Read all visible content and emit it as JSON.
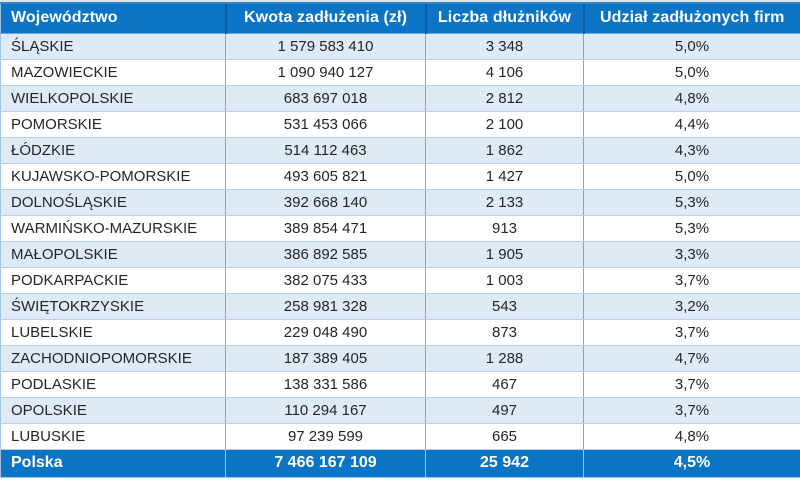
{
  "table": {
    "columns": [
      "Województwo",
      "Kwota zadłużenia (zł)",
      "Liczba dłużników",
      "Udział zadłużonych firm"
    ],
    "rows": [
      [
        "ŚLĄSKIE",
        "1 579 583 410",
        "3 348",
        "5,0%"
      ],
      [
        "MAZOWIECKIE",
        "1 090 940 127",
        "4 106",
        "5,0%"
      ],
      [
        "WIELKOPOLSKIE",
        "683 697 018",
        "2 812",
        "4,8%"
      ],
      [
        "POMORSKIE",
        "531 453 066",
        "2 100",
        "4,4%"
      ],
      [
        "ŁÓDZKIE",
        "514 112 463",
        "1 862",
        "4,3%"
      ],
      [
        "KUJAWSKO-POMORSKIE",
        "493 605 821",
        "1 427",
        "5,0%"
      ],
      [
        "DOLNOŚLĄSKIE",
        "392 668 140",
        "2 133",
        "5,3%"
      ],
      [
        "WARMIŃSKO-MAZURSKIE",
        "389 854 471",
        "913",
        "5,3%"
      ],
      [
        "MAŁOPOLSKIE",
        "386 892 585",
        "1 905",
        "3,3%"
      ],
      [
        "PODKARPACKIE",
        "382 075 433",
        "1 003",
        "3,7%"
      ],
      [
        "ŚWIĘTOKRZYSKIE",
        "258 981 328",
        "543",
        "3,2%"
      ],
      [
        "LUBELSKIE",
        "229 048 490",
        "873",
        "3,7%"
      ],
      [
        "ZACHODNIOPOMORSKIE",
        "187 389 405",
        "1 288",
        "4,7%"
      ],
      [
        "PODLASKIE",
        "138 331 586",
        "467",
        "3,7%"
      ],
      [
        "OPOLSKIE",
        "110 294 167",
        "497",
        "3,7%"
      ],
      [
        "LUBUSKIE",
        "97 239 599",
        "665",
        "4,8%"
      ]
    ],
    "total": [
      "Polska",
      "7 466 167 109",
      "25 942",
      "4,5%"
    ]
  },
  "chart_data": {
    "type": "table",
    "title": "",
    "columns": [
      "Województwo",
      "Kwota zadłużenia (zł)",
      "Liczba dłużników",
      "Udział zadłużonych firm"
    ],
    "rows": [
      {
        "wojewodztwo": "ŚLĄSKIE",
        "kwota_zadluzenia_zl": 1579583410,
        "liczba_dluznikow": 3348,
        "udzial_zadluzonych_firm_pct": 5.0
      },
      {
        "wojewodztwo": "MAZOWIECKIE",
        "kwota_zadluzenia_zl": 1090940127,
        "liczba_dluznikow": 4106,
        "udzial_zadluzonych_firm_pct": 5.0
      },
      {
        "wojewodztwo": "WIELKOPOLSKIE",
        "kwota_zadluzenia_zl": 683697018,
        "liczba_dluznikow": 2812,
        "udzial_zadluzonych_firm_pct": 4.8
      },
      {
        "wojewodztwo": "POMORSKIE",
        "kwota_zadluzenia_zl": 531453066,
        "liczba_dluznikow": 2100,
        "udzial_zadluzonych_firm_pct": 4.4
      },
      {
        "wojewodztwo": "ŁÓDZKIE",
        "kwota_zadluzenia_zl": 514112463,
        "liczba_dluznikow": 1862,
        "udzial_zadluzonych_firm_pct": 4.3
      },
      {
        "wojewodztwo": "KUJAWSKO-POMORSKIE",
        "kwota_zadluzenia_zl": 493605821,
        "liczba_dluznikow": 1427,
        "udzial_zadluzonych_firm_pct": 5.0
      },
      {
        "wojewodztwo": "DOLNOŚLĄSKIE",
        "kwota_zadluzenia_zl": 392668140,
        "liczba_dluznikow": 2133,
        "udzial_zadluzonych_firm_pct": 5.3
      },
      {
        "wojewodztwo": "WARMIŃSKO-MAZURSKIE",
        "kwota_zadluzenia_zl": 389854471,
        "liczba_dluznikow": 913,
        "udzial_zadluzonych_firm_pct": 5.3
      },
      {
        "wojewodztwo": "MAŁOPOLSKIE",
        "kwota_zadluzenia_zl": 386892585,
        "liczba_dluznikow": 1905,
        "udzial_zadluzonych_firm_pct": 3.3
      },
      {
        "wojewodztwo": "PODKARPACKIE",
        "kwota_zadluzenia_zl": 382075433,
        "liczba_dluznikow": 1003,
        "udzial_zadluzonych_firm_pct": 3.7
      },
      {
        "wojewodztwo": "ŚWIĘTOKRZYSKIE",
        "kwota_zadluzenia_zl": 258981328,
        "liczba_dluznikow": 543,
        "udzial_zadluzonych_firm_pct": 3.2
      },
      {
        "wojewodztwo": "LUBELSKIE",
        "kwota_zadluzenia_zl": 229048490,
        "liczba_dluznikow": 873,
        "udzial_zadluzonych_firm_pct": 3.7
      },
      {
        "wojewodztwo": "ZACHODNIOPOMORSKIE",
        "kwota_zadluzenia_zl": 187389405,
        "liczba_dluznikow": 1288,
        "udzial_zadluzonych_firm_pct": 4.7
      },
      {
        "wojewodztwo": "PODLASKIE",
        "kwota_zadluzenia_zl": 138331586,
        "liczba_dluznikow": 467,
        "udzial_zadluzonych_firm_pct": 3.7
      },
      {
        "wojewodztwo": "OPOLSKIE",
        "kwota_zadluzenia_zl": 110294167,
        "liczba_dluznikow": 497,
        "udzial_zadluzonych_firm_pct": 3.7
      },
      {
        "wojewodztwo": "LUBUSKIE",
        "kwota_zadluzenia_zl": 97239599,
        "liczba_dluznikow": 665,
        "udzial_zadluzonych_firm_pct": 4.8
      }
    ],
    "total": {
      "wojewodztwo": "Polska",
      "kwota_zadluzenia_zl": 7466167109,
      "liczba_dluznikow": 25942,
      "udzial_zadluzonych_firm_pct": 4.5
    }
  },
  "colors": {
    "header_bg": "#0c74c4",
    "header_text": "#ffffff",
    "header_divider": "#0a5b9b",
    "header_top_highlight": "#2f87c9",
    "total_bg": "#0c74c4",
    "total_text": "#ffffff",
    "row_alt_bg": "#deeaf6",
    "row_bg": "#ffffff",
    "grid_vertical": "#74a9d8",
    "grid_horizontal": "#b4d2ec",
    "outer_border": "#9dc3e6",
    "body_text": "#262626"
  }
}
